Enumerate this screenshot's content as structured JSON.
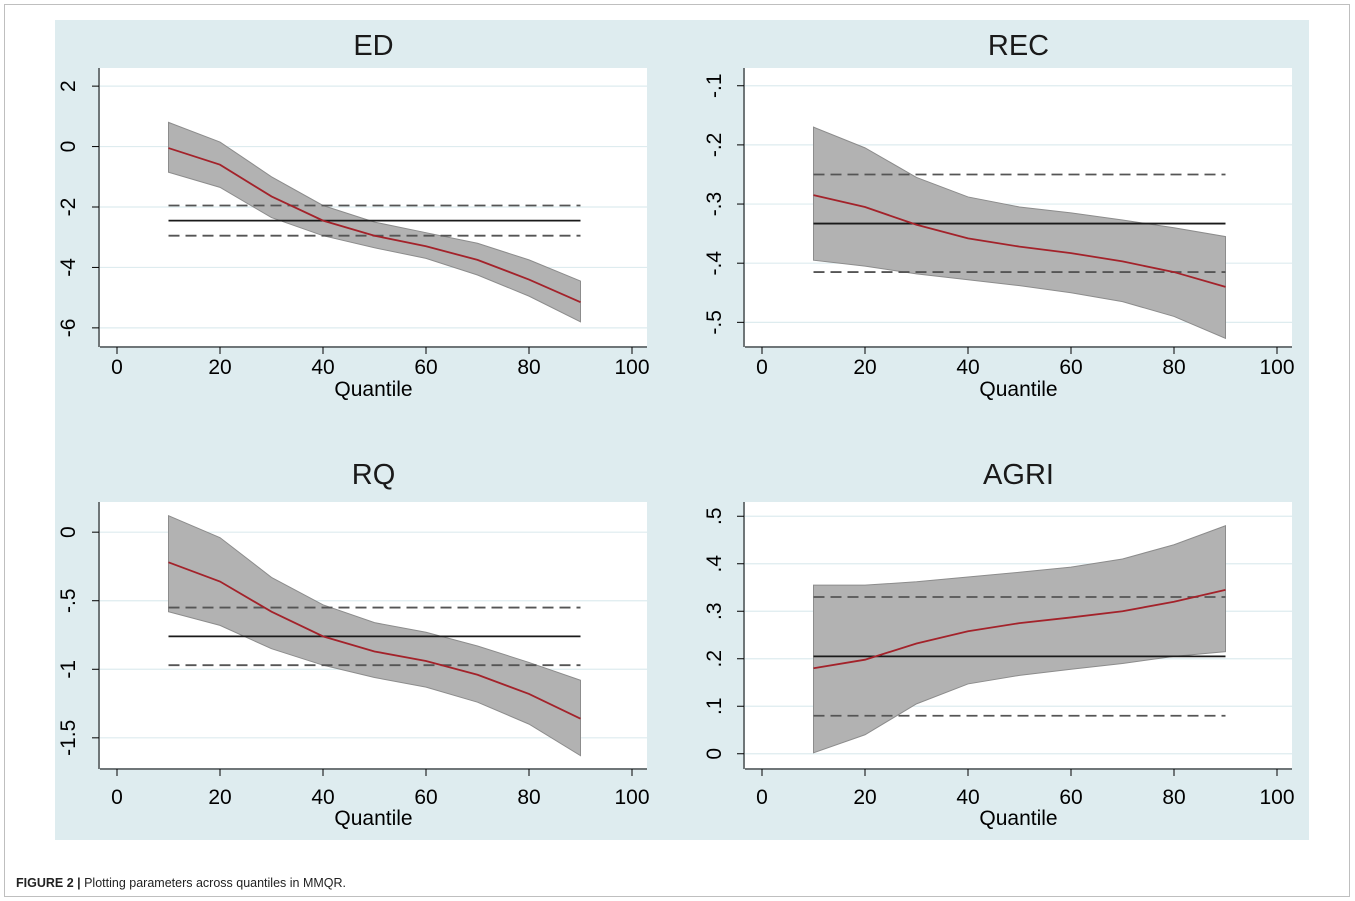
{
  "figure": {
    "caption_label": "FIGURE 2 |",
    "caption_text": " Plotting parameters across quantiles in MMQR.",
    "colors": {
      "panel_bg": "#deecef",
      "plot_bg": "#ffffff",
      "grid": "#deecef",
      "band": "#b2b2b2",
      "band_edge": "#8c8c8c",
      "qr_line": "#a3222a",
      "ols_line": "#1a1a1a",
      "ci_line": "#555555"
    }
  },
  "chart_data": [
    {
      "type": "line",
      "title": "ED",
      "xlabel": "Quantile",
      "ylabel": "",
      "xlim": [
        0,
        100
      ],
      "ylim": [
        -6.6,
        2.6
      ],
      "x_ticks": [
        0,
        20,
        40,
        60,
        80,
        100
      ],
      "y_ticks": [
        2,
        0,
        -2,
        -4,
        -6
      ],
      "y_tick_labels": [
        "2",
        "0",
        "-2",
        "-4",
        "-6"
      ],
      "grid": true,
      "quantiles": [
        10,
        20,
        30,
        40,
        50,
        60,
        70,
        80,
        90
      ],
      "series": [
        {
          "role": "estimate",
          "values": [
            -0.05,
            -0.6,
            -1.65,
            -2.45,
            -2.95,
            -3.3,
            -3.75,
            -4.4,
            -5.15
          ]
        },
        {
          "role": "ci_upper",
          "values": [
            0.8,
            0.15,
            -1.0,
            -1.95,
            -2.5,
            -2.85,
            -3.2,
            -3.75,
            -4.45
          ]
        },
        {
          "role": "ci_lower",
          "values": [
            -0.85,
            -1.35,
            -2.35,
            -2.95,
            -3.35,
            -3.7,
            -4.25,
            -4.95,
            -5.8
          ]
        }
      ],
      "ols": {
        "estimate": -2.45,
        "ci": [
          -1.95,
          -2.95
        ],
        "x_range": [
          10,
          90
        ]
      }
    },
    {
      "type": "line",
      "title": "REC",
      "xlabel": "Quantile",
      "ylabel": "",
      "xlim": [
        0,
        100
      ],
      "ylim": [
        -0.54,
        -0.07
      ],
      "x_ticks": [
        0,
        20,
        40,
        60,
        80,
        100
      ],
      "y_ticks": [
        -0.1,
        -0.2,
        -0.3,
        -0.4,
        -0.5
      ],
      "y_tick_labels": [
        "-.1",
        "-.2",
        "-.3",
        "-.4",
        "-.5"
      ],
      "grid": true,
      "quantiles": [
        10,
        20,
        30,
        40,
        50,
        60,
        70,
        80,
        90
      ],
      "series": [
        {
          "role": "estimate",
          "values": [
            -0.285,
            -0.305,
            -0.335,
            -0.358,
            -0.372,
            -0.383,
            -0.397,
            -0.415,
            -0.44
          ]
        },
        {
          "role": "ci_upper",
          "values": [
            -0.17,
            -0.205,
            -0.255,
            -0.288,
            -0.305,
            -0.315,
            -0.327,
            -0.34,
            -0.355
          ]
        },
        {
          "role": "ci_lower",
          "values": [
            -0.395,
            -0.405,
            -0.418,
            -0.428,
            -0.438,
            -0.45,
            -0.465,
            -0.49,
            -0.527
          ]
        }
      ],
      "ols": {
        "estimate": -0.333,
        "ci": [
          -0.25,
          -0.415
        ],
        "x_range": [
          10,
          90
        ]
      }
    },
    {
      "type": "line",
      "title": "RQ",
      "xlabel": "Quantile",
      "ylabel": "",
      "xlim": [
        0,
        100
      ],
      "ylim": [
        -1.72,
        0.22
      ],
      "x_ticks": [
        0,
        20,
        40,
        60,
        80,
        100
      ],
      "y_ticks": [
        0,
        -0.5,
        -1,
        -1.5
      ],
      "y_tick_labels": [
        "0",
        "-.5",
        "-1",
        "-1.5"
      ],
      "grid": true,
      "quantiles": [
        10,
        20,
        30,
        40,
        50,
        60,
        70,
        80,
        90
      ],
      "series": [
        {
          "role": "estimate",
          "values": [
            -0.22,
            -0.36,
            -0.58,
            -0.76,
            -0.87,
            -0.94,
            -1.04,
            -1.18,
            -1.36
          ]
        },
        {
          "role": "ci_upper",
          "values": [
            0.12,
            -0.04,
            -0.33,
            -0.53,
            -0.66,
            -0.73,
            -0.83,
            -0.95,
            -1.08
          ]
        },
        {
          "role": "ci_lower",
          "values": [
            -0.58,
            -0.68,
            -0.85,
            -0.97,
            -1.06,
            -1.13,
            -1.24,
            -1.4,
            -1.63
          ]
        }
      ],
      "ols": {
        "estimate": -0.76,
        "ci": [
          -0.55,
          -0.97
        ],
        "x_range": [
          10,
          90
        ]
      }
    },
    {
      "type": "line",
      "title": "AGRI",
      "xlabel": "Quantile",
      "ylabel": "",
      "xlim": [
        0,
        100
      ],
      "ylim": [
        -0.03,
        0.53
      ],
      "x_ticks": [
        0,
        20,
        40,
        60,
        80,
        100
      ],
      "y_ticks": [
        0.5,
        0.4,
        0.3,
        0.2,
        0.1,
        0
      ],
      "y_tick_labels": [
        ".5",
        ".4",
        ".3",
        ".2",
        ".1",
        "0"
      ],
      "grid": true,
      "quantiles": [
        10,
        20,
        30,
        40,
        50,
        60,
        70,
        80,
        90
      ],
      "series": [
        {
          "role": "estimate",
          "values": [
            0.18,
            0.198,
            0.232,
            0.258,
            0.275,
            0.287,
            0.3,
            0.32,
            0.345
          ]
        },
        {
          "role": "ci_upper",
          "values": [
            0.355,
            0.355,
            0.362,
            0.372,
            0.382,
            0.393,
            0.41,
            0.44,
            0.48
          ]
        },
        {
          "role": "ci_lower",
          "values": [
            0.002,
            0.04,
            0.105,
            0.147,
            0.165,
            0.178,
            0.19,
            0.205,
            0.215
          ]
        }
      ],
      "ols": {
        "estimate": 0.205,
        "ci": [
          0.33,
          0.08
        ],
        "x_range": [
          10,
          90
        ]
      }
    }
  ]
}
